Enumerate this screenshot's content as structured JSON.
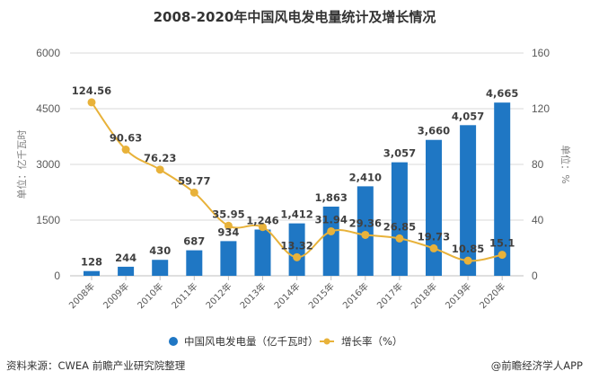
{
  "chart_data": {
    "type": "bar+line",
    "title": "2008-2020年中国风电发电量统计及增长情况",
    "categories": [
      "2008年",
      "2009年",
      "2010年",
      "2011年",
      "2012年",
      "2013年",
      "2014年",
      "2015年",
      "2016年",
      "2017年",
      "2018年",
      "2019年",
      "2020年"
    ],
    "series": [
      {
        "name": "中国风电发电量（亿千瓦时）",
        "type": "bar",
        "axis": "left",
        "color": "#1f77c4",
        "values": [
          128,
          244,
          430,
          687,
          934,
          1246,
          1412,
          1863,
          2410,
          3057,
          3660,
          4057,
          4665
        ],
        "labels": [
          "128",
          "244",
          "430",
          "687",
          "934",
          "1,246",
          "1,412",
          "1,863",
          "2,410",
          "3,057",
          "3,660",
          "4,057",
          "4,665"
        ]
      },
      {
        "name": "增长率（%）",
        "type": "line",
        "axis": "right",
        "color": "#e8b23a",
        "values": [
          124.56,
          90.63,
          76.23,
          59.77,
          35.95,
          35.0,
          13.32,
          31.94,
          29.36,
          26.85,
          19.73,
          10.85,
          15.1
        ],
        "labels": [
          "124.56",
          "90.63",
          "76.23",
          "59.77",
          "35.95",
          "",
          "13.32",
          "31.94",
          "29.36",
          "26.85",
          "19.73",
          "10.85",
          "15.1"
        ]
      }
    ],
    "y_left": {
      "label": "单位：亿千瓦时",
      "ylim": [
        0,
        6000
      ],
      "ticks": [
        "0",
        "1500",
        "3000",
        "4500",
        "6000"
      ]
    },
    "y_right": {
      "label": "单位：%",
      "ylim": [
        0,
        160
      ],
      "ticks": [
        "0",
        "40",
        "80",
        "120",
        "160"
      ]
    },
    "grid": true,
    "legend": "bottom-center"
  },
  "footer": {
    "source": "资料来源：CWEA 前瞻产业研究院整理",
    "credit": "@前瞻经济学人APP"
  }
}
